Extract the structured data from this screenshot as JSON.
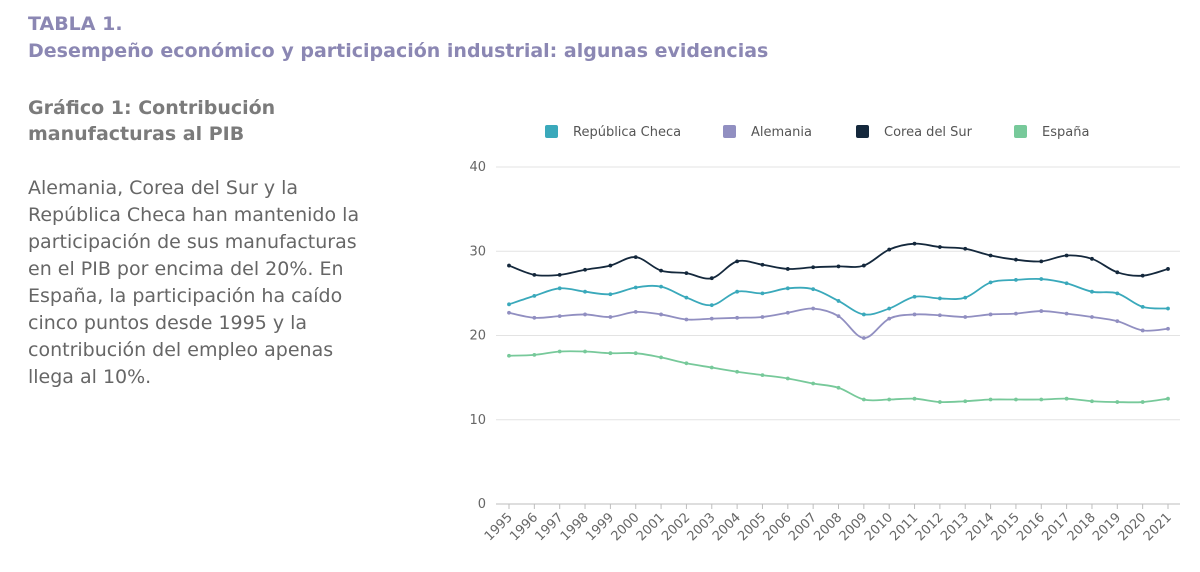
{
  "header": {
    "table_label": "TABLA 1.",
    "subtitle": "Desempeño económico y participación industrial: algunas evidencias"
  },
  "sidebar": {
    "chart_title": "Gráfico 1: Contribución manufacturas al PIB",
    "description": "Alemania, Corea del Sur y la República Checa han mantenido la participación de sus manufacturas en el PIB por encima del 20%. En España, la participación ha caído cinco puntos desde 1995 y la contribución del empleo apenas llega al 10%."
  },
  "chart_data": {
    "type": "line",
    "title": "Gráfico 1: Contribución manufacturas al PIB",
    "xlabel": "",
    "ylabel": "",
    "x": [
      "1995",
      "1996",
      "1997",
      "1998",
      "1999",
      "2000",
      "2001",
      "2002",
      "2003",
      "2004",
      "2005",
      "2006",
      "2007",
      "2008",
      "2009",
      "2010",
      "2011",
      "2012",
      "2013",
      "2014",
      "2015",
      "2016",
      "2017",
      "2018",
      "2019",
      "2020",
      "2021"
    ],
    "ylim": [
      0,
      40
    ],
    "yticks": [
      0,
      10,
      20,
      30,
      40
    ],
    "grid": true,
    "legend_position": "top",
    "series": [
      {
        "name": "República Checa",
        "color": "#3aa9bb",
        "values": [
          23.7,
          24.7,
          25.6,
          25.2,
          24.9,
          25.7,
          25.8,
          24.5,
          23.6,
          25.2,
          25.0,
          25.6,
          25.5,
          24.1,
          22.5,
          23.2,
          24.6,
          24.4,
          24.5,
          26.3,
          26.6,
          26.7,
          26.2,
          25.2,
          25.0,
          23.4,
          23.2
        ]
      },
      {
        "name": "Alemania",
        "color": "#918fc1",
        "values": [
          22.7,
          22.1,
          22.3,
          22.5,
          22.2,
          22.8,
          22.5,
          21.9,
          22.0,
          22.1,
          22.2,
          22.7,
          23.2,
          22.3,
          19.7,
          22.0,
          22.5,
          22.4,
          22.2,
          22.5,
          22.6,
          22.9,
          22.6,
          22.2,
          21.7,
          20.6,
          20.8
        ]
      },
      {
        "name": "Corea del Sur",
        "color": "#14283c",
        "values": [
          28.3,
          27.2,
          27.2,
          27.8,
          28.3,
          29.3,
          27.7,
          27.4,
          26.8,
          28.8,
          28.4,
          27.9,
          28.1,
          28.2,
          28.3,
          30.2,
          30.9,
          30.5,
          30.3,
          29.5,
          29.0,
          28.8,
          29.5,
          29.1,
          27.5,
          27.1,
          27.9
        ]
      },
      {
        "name": "España",
        "color": "#77c99a",
        "values": [
          17.6,
          17.7,
          18.1,
          18.1,
          17.9,
          17.9,
          17.4,
          16.7,
          16.2,
          15.7,
          15.3,
          14.9,
          14.3,
          13.8,
          12.4,
          12.4,
          12.5,
          12.1,
          12.2,
          12.4,
          12.4,
          12.4,
          12.5,
          12.2,
          12.1,
          12.1,
          12.5
        ]
      }
    ]
  }
}
